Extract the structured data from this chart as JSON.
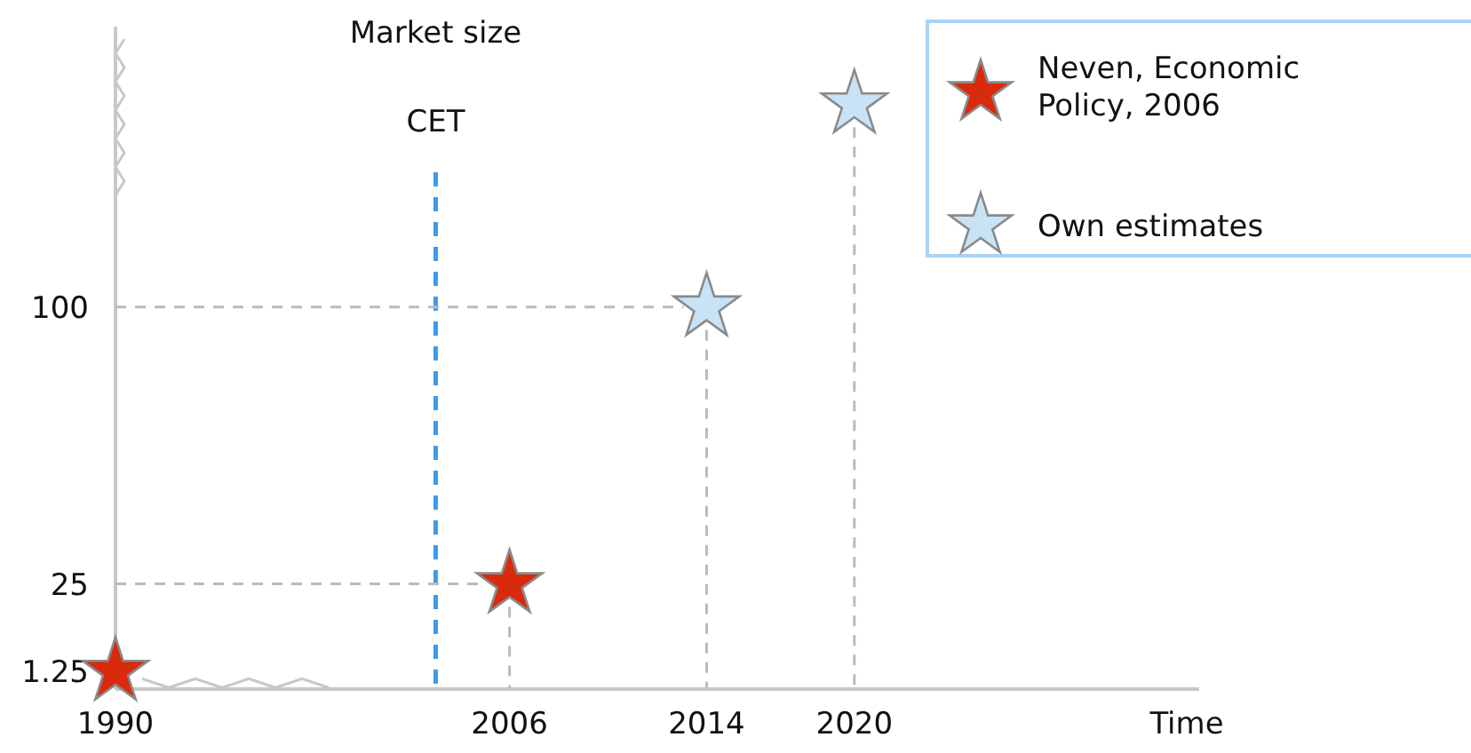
{
  "chart_data": {
    "type": "scatter",
    "ylabel": "Market size",
    "xlabel": "Time",
    "xlim": [
      1990,
      2034
    ],
    "xticks": [
      1990,
      2006,
      2014,
      2020
    ],
    "ylim": [
      -3.5,
      176
    ],
    "yticks": [
      1.25,
      25,
      100
    ],
    "marker": "star",
    "legend": "top right",
    "ref_lines": [
      {
        "axis": "x",
        "value": 2003,
        "label": "CET",
        "color": "#3d9be9",
        "line_style": "dashed"
      },
      {
        "axis": "x",
        "value": 2006,
        "color": "#bbbbbb",
        "line_style": "dashed"
      },
      {
        "axis": "x",
        "value": 2014,
        "color": "#bbbbbb",
        "line_style": "dashed"
      },
      {
        "axis": "x",
        "value": 2020,
        "color": "#bbbbbb",
        "line_style": "dashed"
      },
      {
        "axis": "y",
        "value": 25,
        "color": "#bbbbbb",
        "line_style": "dashed"
      },
      {
        "axis": "y",
        "value": 100,
        "color": "#bbbbbb",
        "line_style": "dashed"
      }
    ],
    "series": [
      {
        "name": "Neven, Economic Policy, 2006",
        "color": "#d92a0e",
        "x": [
          1990,
          2006
        ],
        "values": [
          1.25,
          25
        ]
      },
      {
        "name": "Own estimates",
        "color": "#c8e3f5",
        "x": [
          2014,
          2020
        ],
        "values": [
          100,
          155
        ]
      }
    ]
  }
}
